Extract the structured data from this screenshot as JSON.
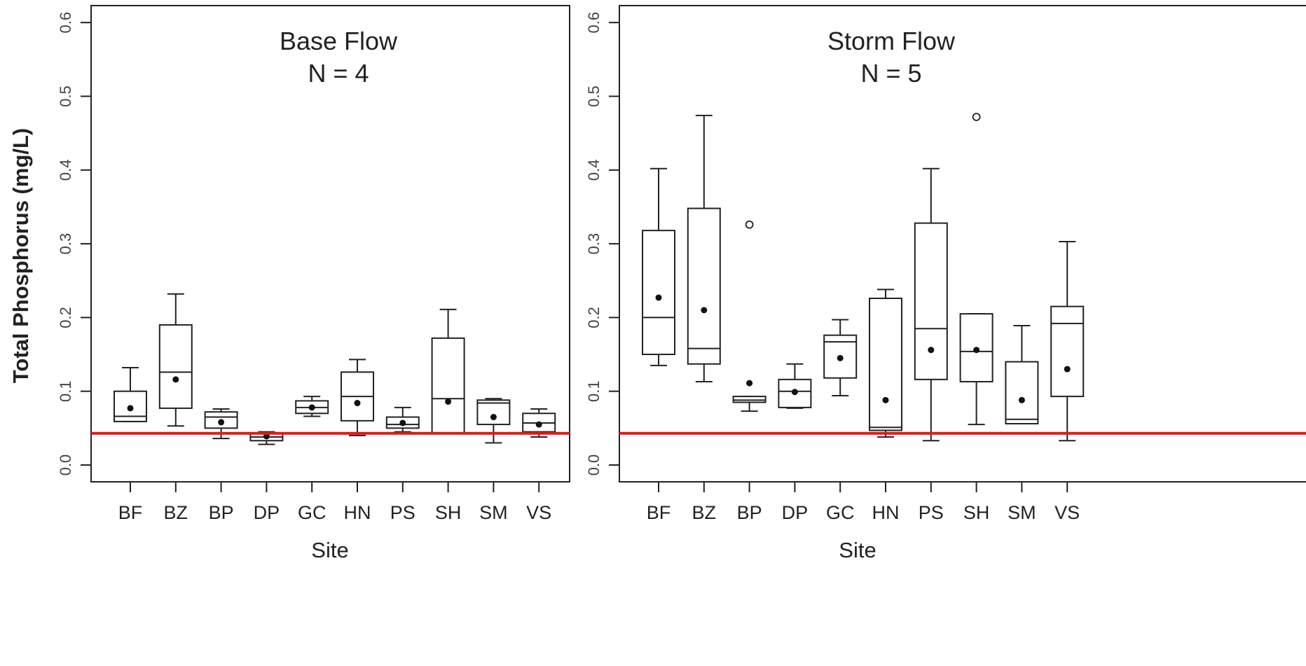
{
  "chart_data": {
    "type": "boxplot",
    "ylabel": "Total Phosphorus (mg/L)",
    "ylim": [
      0.0,
      0.6
    ],
    "yticks": [
      "0.0",
      "0.1",
      "0.2",
      "0.3",
      "0.4",
      "0.5",
      "0.6"
    ],
    "reference_line": {
      "value": 0.043,
      "color": "#cc2222"
    },
    "panels": [
      {
        "title_line1": "Base Flow",
        "title_line2": "N = 4",
        "xlabel": "Site",
        "categories": [
          "BF",
          "BZ",
          "BP",
          "DP",
          "GC",
          "HN",
          "PS",
          "SH",
          "SM",
          "VS"
        ],
        "boxes": [
          {
            "site": "BF",
            "whisker_low": 0.059,
            "q1": 0.059,
            "median": 0.066,
            "q3": 0.1,
            "whisker_high": 0.132,
            "mean": 0.077,
            "outliers": []
          },
          {
            "site": "BZ",
            "whisker_low": 0.053,
            "q1": 0.077,
            "median": 0.126,
            "q3": 0.19,
            "whisker_high": 0.232,
            "mean": 0.116,
            "outliers": []
          },
          {
            "site": "BP",
            "whisker_low": 0.036,
            "q1": 0.05,
            "median": 0.065,
            "q3": 0.072,
            "whisker_high": 0.076,
            "mean": 0.058,
            "outliers": []
          },
          {
            "site": "DP",
            "whisker_low": 0.028,
            "q1": 0.033,
            "median": 0.038,
            "q3": 0.043,
            "whisker_high": 0.045,
            "mean": 0.039,
            "outliers": []
          },
          {
            "site": "GC",
            "whisker_low": 0.066,
            "q1": 0.07,
            "median": 0.078,
            "q3": 0.087,
            "whisker_high": 0.093,
            "mean": 0.078,
            "outliers": []
          },
          {
            "site": "HN",
            "whisker_low": 0.04,
            "q1": 0.06,
            "median": 0.093,
            "q3": 0.126,
            "whisker_high": 0.143,
            "mean": 0.084,
            "outliers": []
          },
          {
            "site": "PS",
            "whisker_low": 0.045,
            "q1": 0.05,
            "median": 0.055,
            "q3": 0.065,
            "whisker_high": 0.078,
            "mean": 0.057,
            "outliers": []
          },
          {
            "site": "SH",
            "whisker_low": 0.043,
            "q1": 0.043,
            "median": 0.09,
            "q3": 0.172,
            "whisker_high": 0.211,
            "mean": 0.086,
            "outliers": []
          },
          {
            "site": "SM",
            "whisker_low": 0.03,
            "q1": 0.055,
            "median": 0.084,
            "q3": 0.088,
            "whisker_high": 0.09,
            "mean": 0.065,
            "outliers": []
          },
          {
            "site": "VS",
            "whisker_low": 0.038,
            "q1": 0.045,
            "median": 0.057,
            "q3": 0.07,
            "whisker_high": 0.076,
            "mean": 0.055,
            "outliers": []
          }
        ]
      },
      {
        "title_line1": "Storm Flow",
        "title_line2": "N = 5",
        "xlabel": "Site",
        "categories": [
          "BF",
          "BZ",
          "BP",
          "DP",
          "GC",
          "HN",
          "PS",
          "SH",
          "SM",
          "VS"
        ],
        "boxes": [
          {
            "site": "BF",
            "whisker_low": 0.135,
            "q1": 0.15,
            "median": 0.2,
            "q3": 0.318,
            "whisker_high": 0.402,
            "mean": 0.227,
            "outliers": []
          },
          {
            "site": "BZ",
            "whisker_low": 0.113,
            "q1": 0.137,
            "median": 0.158,
            "q3": 0.348,
            "whisker_high": 0.474,
            "mean": 0.21,
            "outliers": []
          },
          {
            "site": "BP",
            "whisker_low": 0.073,
            "q1": 0.085,
            "median": 0.088,
            "q3": 0.093,
            "whisker_high": 0.093,
            "mean": 0.111,
            "outliers": [
              0.326
            ]
          },
          {
            "site": "DP",
            "whisker_low": 0.077,
            "q1": 0.078,
            "median": 0.1,
            "q3": 0.116,
            "whisker_high": 0.137,
            "mean": 0.099,
            "outliers": []
          },
          {
            "site": "GC",
            "whisker_low": 0.094,
            "q1": 0.118,
            "median": 0.167,
            "q3": 0.176,
            "whisker_high": 0.197,
            "mean": 0.145,
            "outliers": []
          },
          {
            "site": "HN",
            "whisker_low": 0.038,
            "q1": 0.047,
            "median": 0.051,
            "q3": 0.226,
            "whisker_high": 0.238,
            "mean": 0.088,
            "outliers": []
          },
          {
            "site": "PS",
            "whisker_low": 0.033,
            "q1": 0.116,
            "median": 0.185,
            "q3": 0.328,
            "whisker_high": 0.402,
            "mean": 0.156,
            "outliers": []
          },
          {
            "site": "SH",
            "whisker_low": 0.055,
            "q1": 0.113,
            "median": 0.154,
            "q3": 0.205,
            "whisker_high": 0.205,
            "mean": 0.156,
            "outliers": [
              0.472
            ]
          },
          {
            "site": "SM",
            "whisker_low": 0.056,
            "q1": 0.056,
            "median": 0.062,
            "q3": 0.14,
            "whisker_high": 0.189,
            "mean": 0.088,
            "outliers": []
          },
          {
            "site": "VS",
            "whisker_low": 0.033,
            "q1": 0.093,
            "median": 0.192,
            "q3": 0.215,
            "whisker_high": 0.303,
            "mean": 0.13,
            "outliers": []
          }
        ]
      }
    ]
  }
}
